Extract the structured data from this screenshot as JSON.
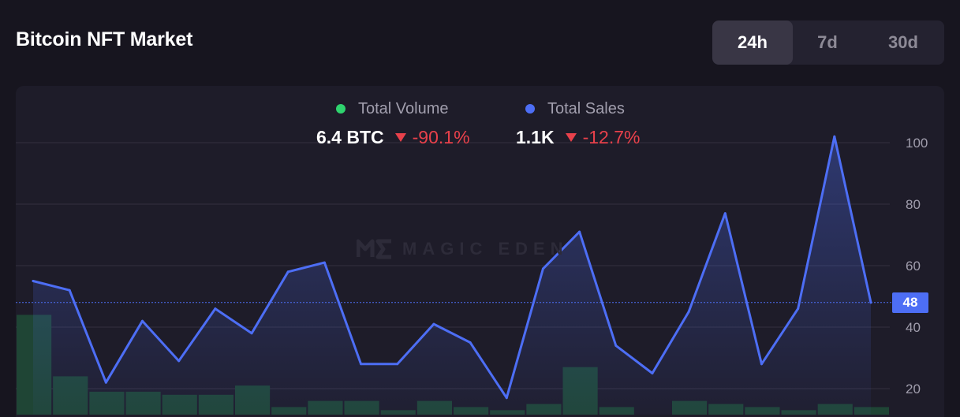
{
  "header": {
    "title": "Bitcoin NFT Market"
  },
  "range_tabs": [
    {
      "label": "24h",
      "active": true
    },
    {
      "label": "7d",
      "active": false
    },
    {
      "label": "30d",
      "active": false
    }
  ],
  "watermark": {
    "text": "MAGIC EDEN"
  },
  "legend": {
    "volume": {
      "label": "Total Volume",
      "value": "6.4 BTC",
      "change": "-90.1%",
      "color": "#2fd36e"
    },
    "sales": {
      "label": "Total Sales",
      "value": "1.1K",
      "change": "-12.7%",
      "color": "#4d6ef5"
    }
  },
  "colors": {
    "negative": "#e8414b",
    "bar": "#1f4535",
    "line": "#4d6ef5"
  },
  "chart_data": {
    "type": "line",
    "title": "",
    "y_ticks": [
      "100",
      "80",
      "60",
      "40",
      "20"
    ],
    "ylim": [
      15,
      105
    ],
    "current_value": "48",
    "series": [
      {
        "name": "Total Sales",
        "type": "line",
        "values": [
          55,
          52,
          22,
          42,
          29,
          46,
          38,
          58,
          61,
          28,
          28,
          41,
          35,
          17,
          59,
          71,
          34,
          25,
          45,
          77,
          28,
          46,
          102,
          48
        ]
      },
      {
        "name": "Total Volume",
        "type": "bar",
        "values": [
          44,
          24,
          19,
          19,
          18,
          18,
          21,
          14,
          16,
          16,
          13,
          16,
          14,
          13,
          15,
          27,
          14,
          11,
          16,
          15,
          14,
          13,
          15,
          14
        ]
      }
    ]
  }
}
